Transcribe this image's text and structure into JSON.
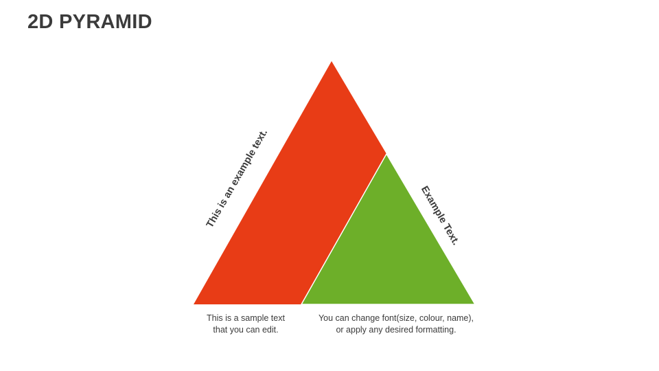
{
  "title": "2D PYRAMID",
  "colors": {
    "left_segment": "#E83C16",
    "right_segment": "#6DAF29",
    "text": "#3B3B3B"
  },
  "segments": [
    {
      "label": "This is an example text.",
      "caption": [
        "This is a sample text",
        "that you can edit."
      ]
    },
    {
      "label": "Example Text.",
      "caption": [
        "You can change font(size, colour, name),",
        "or apply any desired formatting."
      ]
    }
  ]
}
